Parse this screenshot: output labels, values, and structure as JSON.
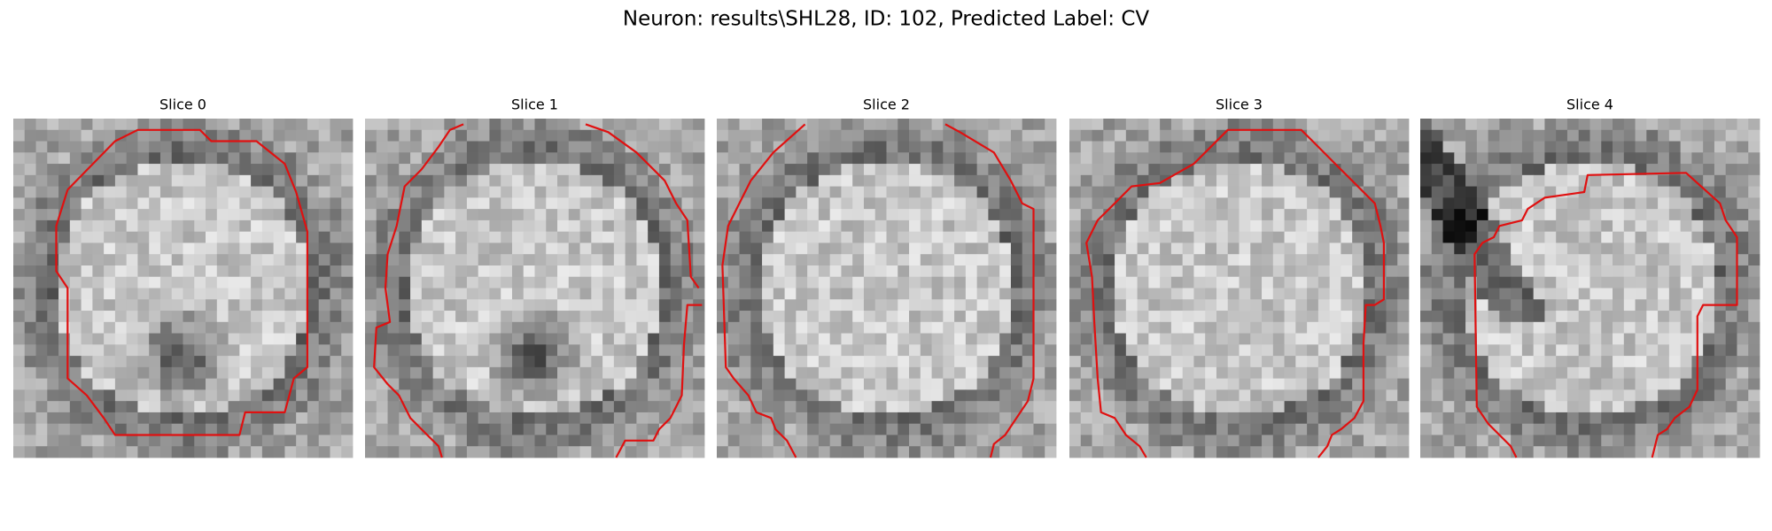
{
  "figure": {
    "title": "Neuron: results\\SHL28, ID: 102, Predicted Label: CV",
    "panels": [
      {
        "title": "Slice 0"
      },
      {
        "title": "Slice 1"
      },
      {
        "title": "Slice 2"
      },
      {
        "title": "Slice 3"
      },
      {
        "title": "Slice 4"
      }
    ]
  }
}
